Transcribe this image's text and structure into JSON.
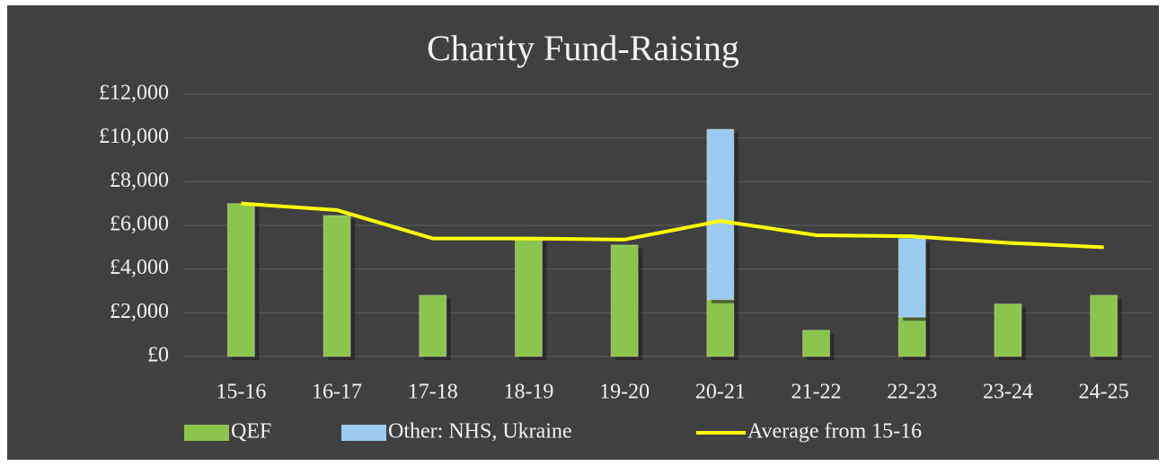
{
  "chart_data": {
    "type": "bar",
    "title": "Charity Fund-Raising",
    "categories": [
      "15-16",
      "16-17",
      "17-18",
      "18-19",
      "19-20",
      "20-21",
      "21-22",
      "22-23",
      "23-24",
      "24-25"
    ],
    "series": [
      {
        "name": "QEF",
        "color": "#8cc54e",
        "kind": "bar",
        "values": [
          7000,
          6450,
          2800,
          5400,
          5100,
          2600,
          1200,
          1800,
          2400,
          2800
        ]
      },
      {
        "name": "Other: NHS, Ukraine",
        "color": "#9ccbf2",
        "kind": "bar",
        "values": [
          null,
          null,
          null,
          null,
          null,
          7800,
          null,
          3600,
          null,
          null
        ]
      },
      {
        "name": "Average from 15-16",
        "color": "#ffff00",
        "kind": "line",
        "values": [
          7000,
          6700,
          5400,
          5400,
          5350,
          6200,
          5550,
          5500,
          5200,
          5000
        ]
      }
    ],
    "ylim": [
      0,
      12000
    ],
    "yticks": [
      {
        "value": 0,
        "label": "£0"
      },
      {
        "value": 2000,
        "label": "£2,000"
      },
      {
        "value": 4000,
        "label": "£4,000"
      },
      {
        "value": 6000,
        "label": "£6,000"
      },
      {
        "value": 8000,
        "label": "£8,000"
      },
      {
        "value": 10000,
        "label": "£10,000"
      },
      {
        "value": 12000,
        "label": "£12,000"
      }
    ],
    "grid": true,
    "stacked": true,
    "legend": "bottom"
  }
}
